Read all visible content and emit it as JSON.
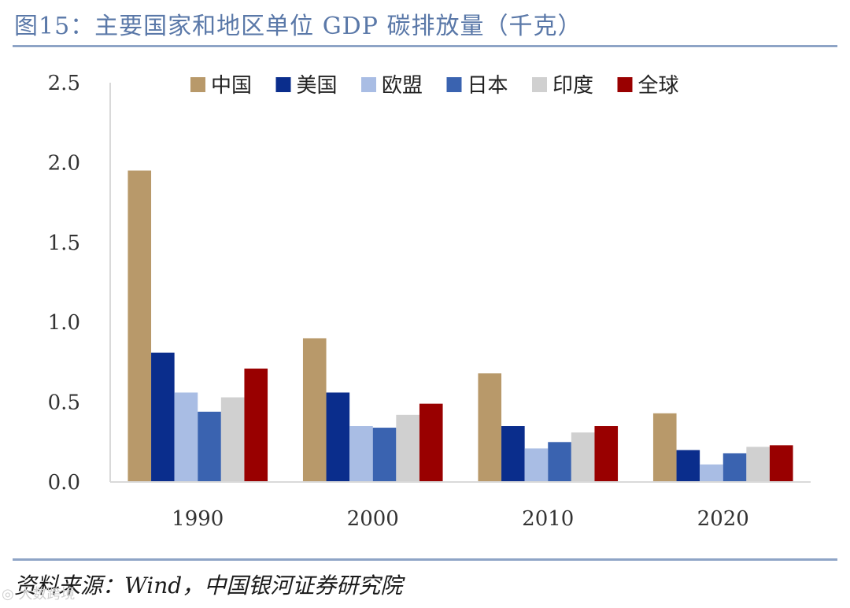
{
  "title": "图15：主要国家和地区单位 GDP 碳排放量（千克）",
  "source": "资料来源：Wind，中国银河证券研究院",
  "watermark": "◎ 大数跨境",
  "chart_data": {
    "type": "bar",
    "title": "主要国家和地区单位 GDP 碳排放量（千克）",
    "xlabel": "",
    "ylabel": "",
    "categories": [
      "1990",
      "2000",
      "2010",
      "2020"
    ],
    "ylim": [
      0,
      2.5
    ],
    "yticks": [
      "0.0",
      "0.5",
      "1.0",
      "1.5",
      "2.0",
      "2.5"
    ],
    "grid": false,
    "legend_position": "top",
    "series": [
      {
        "name": "中国",
        "color": "#b8996a",
        "values": [
          1.95,
          0.9,
          0.68,
          0.43
        ]
      },
      {
        "name": "美国",
        "color": "#0a2d8c",
        "values": [
          0.81,
          0.56,
          0.35,
          0.2
        ]
      },
      {
        "name": "欧盟",
        "color": "#a9bde4",
        "values": [
          0.56,
          0.35,
          0.21,
          0.11
        ]
      },
      {
        "name": "日本",
        "color": "#3a63b0",
        "values": [
          0.44,
          0.34,
          0.25,
          0.18
        ]
      },
      {
        "name": "印度",
        "color": "#d0d0d0",
        "values": [
          0.53,
          0.42,
          0.31,
          0.22
        ]
      },
      {
        "name": "全球",
        "color": "#990000",
        "values": [
          0.71,
          0.49,
          0.35,
          0.23
        ]
      }
    ]
  }
}
